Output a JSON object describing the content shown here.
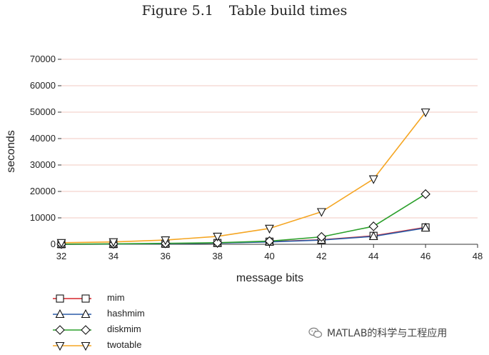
{
  "caption": {
    "number": "Figure 5.1",
    "title": "Table build times"
  },
  "watermark": {
    "text": "MATLAB的科学与工程应用",
    "icon": "wechat-icon"
  },
  "colors": {
    "mim": "#d6262b",
    "hashmim": "#2a5ca8",
    "diskmim": "#2ca02c",
    "twotable": "#f5a623",
    "grid": "#f2c9c2",
    "axis": "#333333"
  },
  "chart_data": {
    "type": "line",
    "xlabel": "message bits",
    "ylabel": "seconds",
    "xlim": [
      32,
      48
    ],
    "ylim": [
      0,
      70000
    ],
    "xticks": [
      32,
      34,
      36,
      38,
      40,
      42,
      44,
      46,
      48
    ],
    "yticks": [
      0,
      10000,
      20000,
      30000,
      40000,
      50000,
      60000,
      70000
    ],
    "grid": "horizontal",
    "legend_position": "below",
    "x": [
      32,
      34,
      36,
      38,
      40,
      42,
      44,
      46
    ],
    "series": [
      {
        "name": "mim",
        "marker": "square",
        "values": [
          30,
          80,
          200,
          500,
          1000,
          1700,
          3200,
          6400
        ]
      },
      {
        "name": "hashmim",
        "marker": "triangle-up",
        "values": [
          30,
          80,
          200,
          450,
          900,
          1600,
          3000,
          6200
        ]
      },
      {
        "name": "diskmim",
        "marker": "diamond",
        "values": [
          60,
          150,
          350,
          600,
          1200,
          2800,
          6800,
          19000
        ]
      },
      {
        "name": "twotable",
        "marker": "triangle-down",
        "values": [
          600,
          900,
          1600,
          3000,
          6000,
          12300,
          24700,
          50000
        ]
      }
    ]
  }
}
